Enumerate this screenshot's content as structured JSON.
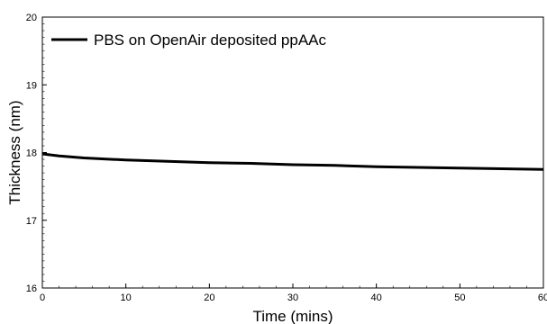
{
  "chart_data": {
    "type": "line",
    "title": "",
    "xlabel": "Time (mins)",
    "ylabel": "Thickness (nm)",
    "xlim": [
      0,
      60
    ],
    "ylim": [
      16,
      20
    ],
    "x_ticks": [
      0,
      10,
      20,
      30,
      40,
      50,
      60
    ],
    "x_tick_labels": [
      "0",
      "10",
      "20",
      "30",
      "40",
      "50",
      "60"
    ],
    "y_ticks": [
      16,
      17,
      18,
      19,
      20
    ],
    "y_tick_labels": [
      "16",
      "17",
      "18",
      "19",
      "20"
    ],
    "grid": false,
    "legend_position": "top-left",
    "series": [
      {
        "name": "PBS on OpenAir deposited ppAAc",
        "color": "#000000",
        "x": [
          0,
          2,
          5,
          10,
          15,
          20,
          25,
          30,
          35,
          40,
          45,
          50,
          55,
          60
        ],
        "y": [
          17.98,
          17.95,
          17.92,
          17.89,
          17.87,
          17.85,
          17.84,
          17.82,
          17.81,
          17.79,
          17.78,
          17.77,
          17.76,
          17.75
        ]
      }
    ]
  }
}
